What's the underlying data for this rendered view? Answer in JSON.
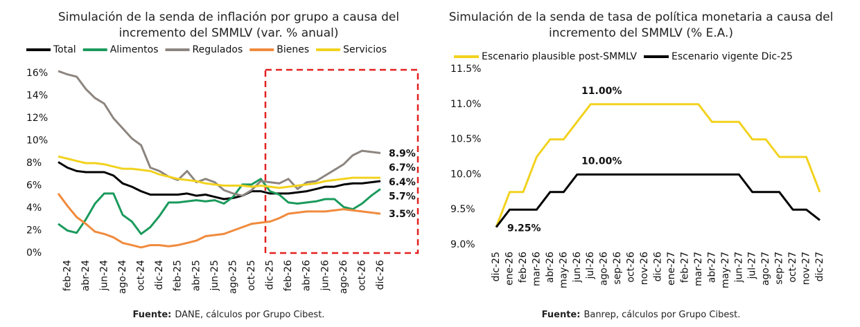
{
  "chart_data": [
    {
      "type": "line",
      "title": [
        "Simulación de la senda de inflación por grupo a causa del",
        "incremento del SMMLV (var. % anual)"
      ],
      "categories": [
        null,
        "feb-24",
        null,
        "abr-24",
        null,
        "jun-24",
        null,
        "ago-24",
        null,
        "oct-24",
        null,
        "dic-24",
        null,
        "feb-25",
        null,
        "abr-25",
        null,
        "jun-25",
        null,
        "ago-25",
        null,
        "oct-25",
        null,
        "dic-25",
        null,
        "feb-26",
        null,
        "abr-26",
        null,
        "jun-26",
        null,
        "ago-26",
        null,
        "oct-26",
        null,
        "dic-26"
      ],
      "series": [
        {
          "name": "Total",
          "color": "#000000",
          "values": [
            8.1,
            7.6,
            7.3,
            7.2,
            7.2,
            7.2,
            6.9,
            6.2,
            5.9,
            5.5,
            5.2,
            5.2,
            5.2,
            5.2,
            5.3,
            5.1,
            5.2,
            5.0,
            4.8,
            4.9,
            5.1,
            5.5,
            5.5,
            5.3,
            5.3,
            5.3,
            5.4,
            5.5,
            5.7,
            5.9,
            5.9,
            6.1,
            6.2,
            6.2,
            6.3,
            6.4
          ],
          "value_labels": [
            null,
            null,
            null,
            null,
            null,
            null,
            null,
            null,
            null,
            null,
            null,
            null,
            null,
            null,
            null,
            null,
            null,
            null,
            null,
            null,
            null,
            null,
            null,
            null,
            null,
            null,
            null,
            null,
            null,
            null,
            null,
            null,
            null,
            null,
            null,
            "6.4%"
          ]
        },
        {
          "name": "Alimentos",
          "color": "#1a9a5c",
          "values": [
            2.6,
            2.0,
            1.8,
            3.0,
            4.4,
            5.3,
            5.3,
            3.4,
            2.8,
            1.7,
            2.3,
            3.3,
            4.5,
            4.5,
            4.6,
            4.7,
            4.6,
            4.7,
            4.4,
            5.0,
            6.1,
            6.1,
            6.6,
            5.5,
            5.2,
            4.5,
            4.4,
            4.5,
            4.6,
            4.8,
            4.8,
            4.1,
            3.9,
            4.4,
            5.1,
            5.7
          ],
          "value_labels": [
            null,
            null,
            null,
            null,
            null,
            null,
            null,
            null,
            null,
            null,
            null,
            null,
            null,
            null,
            null,
            null,
            null,
            null,
            null,
            null,
            null,
            null,
            null,
            null,
            null,
            null,
            null,
            null,
            null,
            null,
            null,
            null,
            null,
            null,
            null,
            "5.7%"
          ]
        },
        {
          "name": "Regulados",
          "color": "#8c8580",
          "values": [
            16.2,
            15.9,
            15.7,
            14.6,
            13.8,
            13.3,
            12.0,
            11.1,
            10.2,
            9.6,
            7.6,
            7.3,
            6.8,
            6.5,
            7.3,
            6.3,
            6.6,
            6.3,
            5.6,
            5.3,
            5.1,
            5.6,
            6.4,
            6.3,
            6.2,
            6.6,
            5.7,
            6.3,
            6.4,
            6.9,
            7.4,
            7.9,
            8.7,
            9.1,
            9.0,
            8.9
          ],
          "value_labels": [
            null,
            null,
            null,
            null,
            null,
            null,
            null,
            null,
            null,
            null,
            null,
            null,
            null,
            null,
            null,
            null,
            null,
            null,
            null,
            null,
            null,
            null,
            null,
            null,
            null,
            null,
            null,
            null,
            null,
            null,
            null,
            null,
            null,
            null,
            null,
            "8.9%"
          ]
        },
        {
          "name": "Bienes",
          "color": "#f08a3c",
          "values": [
            5.3,
            4.2,
            3.2,
            2.6,
            1.9,
            1.7,
            1.4,
            0.9,
            0.7,
            0.5,
            0.7,
            0.7,
            0.6,
            0.7,
            0.9,
            1.1,
            1.5,
            1.6,
            1.7,
            2.0,
            2.3,
            2.6,
            2.7,
            2.8,
            3.1,
            3.5,
            3.6,
            3.7,
            3.7,
            3.7,
            3.8,
            3.9,
            3.8,
            3.7,
            3.6,
            3.5
          ],
          "value_labels": [
            null,
            null,
            null,
            null,
            null,
            null,
            null,
            null,
            null,
            null,
            null,
            null,
            null,
            null,
            null,
            null,
            null,
            null,
            null,
            null,
            null,
            null,
            null,
            null,
            null,
            null,
            null,
            null,
            null,
            null,
            null,
            null,
            null,
            null,
            null,
            "3.5%"
          ]
        },
        {
          "name": "Servicios",
          "color": "#f2d21e",
          "values": [
            8.6,
            8.4,
            8.2,
            8.0,
            8.0,
            7.9,
            7.7,
            7.5,
            7.5,
            7.4,
            7.3,
            7.0,
            6.8,
            6.6,
            6.5,
            6.4,
            6.2,
            6.1,
            6.0,
            6.0,
            6.0,
            5.9,
            6.0,
            5.9,
            5.8,
            5.9,
            6.0,
            6.1,
            6.2,
            6.4,
            6.5,
            6.6,
            6.7,
            6.7,
            6.7,
            6.7
          ],
          "value_labels": [
            null,
            null,
            null,
            null,
            null,
            null,
            null,
            null,
            null,
            null,
            null,
            null,
            null,
            null,
            null,
            null,
            null,
            null,
            null,
            null,
            null,
            null,
            null,
            null,
            null,
            null,
            null,
            null,
            null,
            null,
            null,
            null,
            null,
            null,
            null,
            "6.7%"
          ]
        }
      ],
      "ylim": [
        0,
        16
      ],
      "yticks": [
        {
          "value": 0,
          "label": "0%"
        },
        {
          "value": 2,
          "label": "2%"
        },
        {
          "value": 4,
          "label": "4%"
        },
        {
          "value": 6,
          "label": "6%"
        },
        {
          "value": 8,
          "label": "8%"
        },
        {
          "value": 10,
          "label": "10%"
        },
        {
          "value": 12,
          "label": "12%"
        },
        {
          "value": 14,
          "label": "14%"
        },
        {
          "value": 16,
          "label": "16%"
        }
      ],
      "grid": false,
      "legend": "top",
      "source_prefix": "Fuente:",
      "source": "DANE, cálculos por Grupo Cibest."
    },
    {
      "type": "line",
      "title": [
        "Simulación de la senda de tasa de política monetaria a causa del",
        "incremento del SMMLV (% E.A.)"
      ],
      "categories": [
        "dic-25",
        "ene-26",
        "feb-26",
        "mar-26",
        "abr-26",
        "may-26",
        "jun-26",
        "jul-26",
        "ago-26",
        "sep-26",
        "oct-26",
        "nov-26",
        "dic-26",
        "ene-27",
        "feb-27",
        "mar-27",
        "abr-27",
        "may-27",
        "jun-27",
        "jul-27",
        "ago-27",
        "sep-27",
        "oct-27",
        "nov-27",
        "dic-27"
      ],
      "series": [
        {
          "name": "Escenario plausible post-SMMLV",
          "color": "#f2d21e",
          "values": [
            9.25,
            9.75,
            9.75,
            10.25,
            10.5,
            10.5,
            10.75,
            11.0,
            11.0,
            11.0,
            11.0,
            11.0,
            11.0,
            11.0,
            11.0,
            11.0,
            10.75,
            10.75,
            10.75,
            10.5,
            10.5,
            10.25,
            10.25,
            10.25,
            9.75
          ],
          "value_labels": [
            null,
            null,
            null,
            null,
            null,
            null,
            null,
            "11.00%",
            null,
            null,
            null,
            null,
            null,
            null,
            null,
            null,
            null,
            null,
            null,
            null,
            null,
            null,
            null,
            null,
            null
          ]
        },
        {
          "name": "Escenario vigente Dic-25",
          "color": "#000000",
          "values": [
            9.25,
            9.5,
            9.5,
            9.5,
            9.75,
            9.75,
            10.0,
            10.0,
            10.0,
            10.0,
            10.0,
            10.0,
            10.0,
            10.0,
            10.0,
            10.0,
            10.0,
            10.0,
            10.0,
            9.75,
            9.75,
            9.75,
            9.5,
            9.5,
            9.35
          ],
          "value_labels": [
            "9.25%",
            null,
            null,
            null,
            null,
            null,
            null,
            "10.00%",
            null,
            null,
            null,
            null,
            null,
            null,
            null,
            null,
            null,
            null,
            null,
            null,
            null,
            null,
            null,
            null,
            null
          ]
        }
      ],
      "ylim": [
        9.0,
        11.5
      ],
      "yticks": [
        {
          "value": 9.0,
          "label": "9.0%"
        },
        {
          "value": 9.5,
          "label": "9.5%"
        },
        {
          "value": 10.0,
          "label": "10.0%"
        },
        {
          "value": 10.5,
          "label": "10.5%"
        },
        {
          "value": 11.0,
          "label": "11.0%"
        },
        {
          "value": 11.5,
          "label": "11.5%"
        }
      ],
      "grid": false,
      "legend": "top",
      "source_prefix": "Fuente:",
      "source": "Banrep, cálculos por Grupo Cibest."
    }
  ]
}
